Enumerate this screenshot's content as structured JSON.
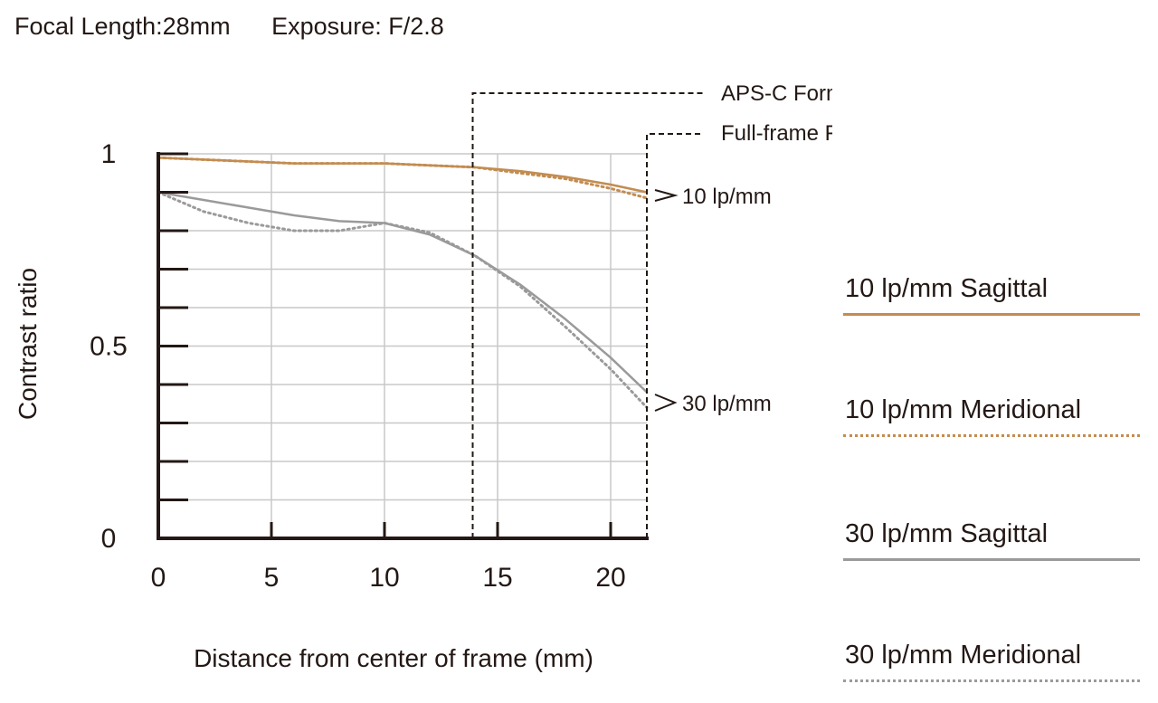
{
  "header": {
    "focal_length": "Focal Length:28mm",
    "exposure": "Exposure: F/2.8"
  },
  "colors": {
    "lp10": "#c38c50",
    "lp30": "#9a9a9a",
    "axis": "#231815",
    "grid": "#c8c8c8"
  },
  "chart_data": {
    "type": "line",
    "xlabel": "Distance from center of frame (mm)",
    "ylabel": "Contrast ratio",
    "xlim": [
      0,
      21.6
    ],
    "ylim": [
      0,
      1
    ],
    "x_ticks": [
      "0",
      "5",
      "10",
      "15",
      "20"
    ],
    "y_ticks": [
      "0",
      "0.5",
      "1"
    ],
    "grid": true,
    "legend_position": "right",
    "series": [
      {
        "name": "10 lp/mm Sagittal",
        "style": "solid",
        "color": "#c38c50",
        "x": [
          0,
          2,
          4,
          6,
          8,
          10,
          12,
          14,
          16,
          18,
          20,
          21.6
        ],
        "y": [
          0.99,
          0.985,
          0.98,
          0.975,
          0.975,
          0.975,
          0.97,
          0.965,
          0.955,
          0.94,
          0.92,
          0.9
        ]
      },
      {
        "name": "10 lp/mm Meridional",
        "style": "dotted",
        "color": "#c38c50",
        "x": [
          0,
          2,
          4,
          6,
          8,
          10,
          12,
          14,
          16,
          18,
          20,
          21.6
        ],
        "y": [
          0.99,
          0.985,
          0.98,
          0.975,
          0.975,
          0.975,
          0.97,
          0.965,
          0.95,
          0.935,
          0.91,
          0.885
        ]
      },
      {
        "name": "30 lp/mm Sagittal",
        "style": "solid",
        "color": "#9a9a9a",
        "x": [
          0,
          2,
          4,
          6,
          8,
          10,
          12,
          14,
          16,
          18,
          20,
          21.6
        ],
        "y": [
          0.9,
          0.88,
          0.86,
          0.84,
          0.825,
          0.82,
          0.79,
          0.735,
          0.66,
          0.57,
          0.47,
          0.38
        ]
      },
      {
        "name": "30 lp/mm Meridional",
        "style": "dotted",
        "color": "#9a9a9a",
        "x": [
          0,
          2,
          4,
          6,
          8,
          10,
          12,
          14,
          16,
          18,
          20,
          21.6
        ],
        "y": [
          0.9,
          0.85,
          0.82,
          0.8,
          0.8,
          0.82,
          0.795,
          0.735,
          0.655,
          0.55,
          0.44,
          0.34
        ]
      }
    ],
    "annotations": {
      "aps_c_label": "APS-C Format",
      "aps_c_x": 13.9,
      "full_frame_label": "Full-frame Format",
      "full_frame_x": 21.6,
      "lp10_label": "10 lp/mm",
      "lp30_label": "30 lp/mm"
    }
  },
  "legend": [
    {
      "label": "10 lp/mm Sagittal",
      "color": "#c38c50",
      "style": "solid"
    },
    {
      "label": "10 lp/mm Meridional",
      "color": "#c38c50",
      "style": "dotted"
    },
    {
      "label": "30 lp/mm Sagittal",
      "color": "#9a9a9a",
      "style": "solid"
    },
    {
      "label": "30 lp/mm Meridional",
      "color": "#9a9a9a",
      "style": "dotted"
    }
  ]
}
